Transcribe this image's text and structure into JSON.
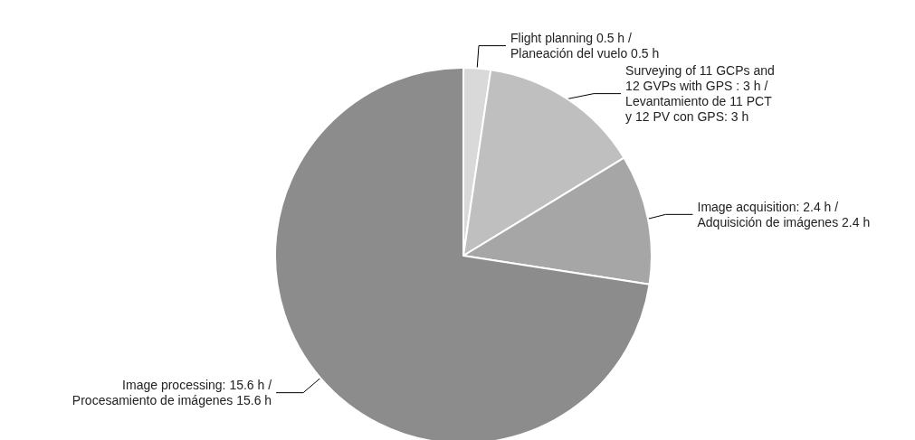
{
  "chart_data": {
    "type": "pie",
    "categories": [
      "Flight planning 0.5 h /\nPlaneación del vuelo 0.5 h",
      "Surveying of 11 GCPs and\n12 GVPs with GPS : 3 h /\nLevantamiento de 11 PCT\ny 12 PV con GPS: 3 h",
      "Image acquisition: 2.4 h /\nAdquisición de imágenes 2.4 h",
      "Image processing: 15.6 h /\nProcesamiento de imágenes 15.6 h"
    ],
    "values": [
      0.5,
      3,
      2.4,
      15.6
    ],
    "colors": [
      "#d9d9d9",
      "#bfbfbf",
      "#a6a6a6",
      "#8c8c8c"
    ]
  }
}
